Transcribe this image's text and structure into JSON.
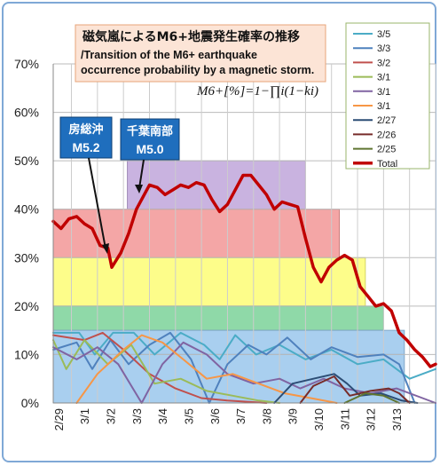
{
  "title_ja": "磁気嵐によるM6+地震発生確率の推移",
  "title_en_line1": "/Transition of the M6+ earthquake",
  "title_en_line2": "occurrence probability by a magnetic storm.",
  "formula": "M6+[%]=1−∏i(1−ki)",
  "callouts": [
    {
      "name": "房総沖",
      "magnitude": "M5.2"
    },
    {
      "name": "千葉南部",
      "magnitude": "M5.0"
    }
  ],
  "colors": {
    "total": "#c00000",
    "band_purple": "#c9b3e0",
    "band_red": "#f4a6a6",
    "band_yellow": "#fdfd8a",
    "band_green": "#8fd9a8",
    "band_blue": "#a9cfef"
  },
  "chart_data": {
    "type": "line",
    "title": "磁気嵐によるM6+地震発生確率の推移",
    "x_tick_labels": [
      "2/29",
      "3/1",
      "3/2",
      "3/3",
      "3/4",
      "3/5",
      "3/6",
      "3/7",
      "3/8",
      "3/9",
      "3/10",
      "3/11",
      "3/12",
      "3/13"
    ],
    "x_range_days": [
      -0.7,
      14.0
    ],
    "y_tick_labels": [
      "0%",
      "10%",
      "20%",
      "30%",
      "40%",
      "50%",
      "60%",
      "70%"
    ],
    "ylim": [
      0,
      70
    ],
    "grid": true,
    "legend_position": "top-right",
    "bands": [
      {
        "x": [
          2.15,
          9.0
        ],
        "y": [
          40,
          50
        ],
        "color": "#c9b3e0"
      },
      {
        "x": [
          -0.7,
          10.3
        ],
        "y": [
          30,
          40
        ],
        "color": "#f4a6a6"
      },
      {
        "x": [
          -0.7,
          11.3
        ],
        "y": [
          20,
          30
        ],
        "color": "#fdfd8a"
      },
      {
        "x": [
          -0.7,
          12.0
        ],
        "y": [
          15,
          20
        ],
        "color": "#8fd9a8"
      },
      {
        "x": [
          -0.7,
          12.8
        ],
        "y": [
          10,
          15
        ],
        "color": "#a9cfef"
      },
      {
        "x": [
          -0.7,
          12.8
        ],
        "y": [
          0,
          10
        ],
        "color": "#a9cfef"
      }
    ],
    "series": [
      {
        "name": "3/5",
        "color": "#4bacc6",
        "points": [
          [
            -0.7,
            14.5
          ],
          [
            0.3,
            14.5
          ],
          [
            0.9,
            10
          ],
          [
            1.6,
            14.5
          ],
          [
            2.4,
            14.5
          ],
          [
            3.2,
            10
          ],
          [
            4.2,
            14.5
          ],
          [
            5.1,
            12
          ],
          [
            5.7,
            9
          ],
          [
            6.3,
            14
          ],
          [
            7.1,
            10
          ],
          [
            8.0,
            12
          ],
          [
            9.0,
            9
          ],
          [
            10.0,
            11
          ],
          [
            11.0,
            8
          ],
          [
            12.0,
            9
          ],
          [
            13.0,
            5
          ],
          [
            14.0,
            7
          ]
        ]
      },
      {
        "name": "3/3",
        "color": "#4f81bd",
        "points": [
          [
            -0.7,
            11
          ],
          [
            0.2,
            12.5
          ],
          [
            0.8,
            7
          ],
          [
            1.5,
            13
          ],
          [
            2.2,
            8
          ],
          [
            3.0,
            12
          ],
          [
            3.8,
            14.5
          ],
          [
            4.6,
            9
          ],
          [
            5.3,
            0
          ],
          [
            6.0,
            8
          ],
          [
            6.8,
            12
          ],
          [
            7.5,
            10
          ],
          [
            8.3,
            13.5
          ],
          [
            9.2,
            9
          ],
          [
            10.0,
            11.5
          ],
          [
            11.0,
            9.5
          ],
          [
            12.0,
            10
          ],
          [
            12.6,
            8
          ],
          [
            13.2,
            0
          ]
        ]
      },
      {
        "name": "3/2",
        "color": "#c0504d",
        "points": [
          [
            -0.7,
            14
          ],
          [
            0.5,
            13
          ],
          [
            1.2,
            14.5
          ],
          [
            2.0,
            11
          ],
          [
            3.0,
            6
          ],
          [
            4.0,
            3
          ],
          [
            5.0,
            1
          ],
          [
            6.0,
            0.5
          ],
          [
            7.5,
            0
          ]
        ]
      },
      {
        "name": "3/1",
        "color": "#9bbb59",
        "points": [
          [
            -0.7,
            13
          ],
          [
            -0.2,
            7
          ],
          [
            0.5,
            13
          ],
          [
            1.4,
            8
          ],
          [
            2.3,
            12
          ],
          [
            3.2,
            4
          ],
          [
            4.2,
            5
          ],
          [
            5.2,
            2.5
          ],
          [
            6.2,
            1.5
          ],
          [
            7.2,
            0.5
          ],
          [
            8.0,
            0
          ]
        ]
      },
      {
        "name": "3/1",
        "color": "#8064a2",
        "points": [
          [
            -0.7,
            11.5
          ],
          [
            0.2,
            9
          ],
          [
            1.0,
            11.5
          ],
          [
            1.8,
            8
          ],
          [
            2.7,
            0
          ],
          [
            3.5,
            8
          ],
          [
            4.3,
            12.5
          ],
          [
            5.2,
            10
          ],
          [
            6.0,
            6
          ],
          [
            7.0,
            4
          ],
          [
            8.0,
            5
          ],
          [
            8.8,
            3
          ],
          [
            9.7,
            5
          ],
          [
            10.5,
            3
          ],
          [
            11.5,
            2
          ],
          [
            12.5,
            3
          ],
          [
            13.5,
            1
          ],
          [
            14.0,
            0
          ]
        ]
      },
      {
        "name": "3/1",
        "color": "#f79646",
        "points": [
          [
            0.2,
            0
          ],
          [
            1.0,
            6
          ],
          [
            2.0,
            11
          ],
          [
            2.7,
            14
          ],
          [
            3.5,
            12.5
          ],
          [
            4.3,
            9
          ],
          [
            5.2,
            5
          ],
          [
            6.2,
            6
          ],
          [
            7.2,
            4
          ],
          [
            8.2,
            2
          ],
          [
            9.2,
            1
          ],
          [
            10.2,
            0
          ]
        ]
      },
      {
        "name": "2/27",
        "color": "#2c4d75",
        "points": [
          [
            7.8,
            0
          ],
          [
            8.5,
            4
          ],
          [
            9.3,
            5
          ],
          [
            10.1,
            6
          ],
          [
            10.6,
            4
          ],
          [
            11.1,
            1.5
          ],
          [
            11.9,
            2
          ],
          [
            12.7,
            0.5
          ],
          [
            13.3,
            0
          ]
        ]
      },
      {
        "name": "2/26",
        "color": "#772c2a",
        "points": [
          [
            8.8,
            0
          ],
          [
            9.3,
            3.5
          ],
          [
            10.1,
            5.5
          ],
          [
            10.7,
            1.5
          ],
          [
            11.5,
            2.5
          ],
          [
            12.2,
            3
          ],
          [
            12.6,
            2
          ],
          [
            13.0,
            0
          ]
        ]
      },
      {
        "name": "2/25",
        "color": "#5f7530",
        "points": [
          [
            10.5,
            0
          ],
          [
            11.3,
            2
          ],
          [
            12.0,
            1.5
          ],
          [
            12.6,
            0
          ]
        ]
      },
      {
        "name": "Total",
        "color": "#c00000",
        "points": [
          [
            -0.7,
            37.5
          ],
          [
            -0.4,
            36
          ],
          [
            -0.1,
            38
          ],
          [
            0.2,
            38.5
          ],
          [
            0.5,
            37
          ],
          [
            0.8,
            36
          ],
          [
            1.1,
            32.5
          ],
          [
            1.4,
            32
          ],
          [
            1.55,
            28
          ],
          [
            1.9,
            31
          ],
          [
            2.2,
            35
          ],
          [
            2.5,
            40
          ],
          [
            2.8,
            43
          ],
          [
            3.0,
            45
          ],
          [
            3.3,
            44.5
          ],
          [
            3.6,
            43
          ],
          [
            3.9,
            44
          ],
          [
            4.2,
            45
          ],
          [
            4.5,
            44.5
          ],
          [
            4.8,
            45.5
          ],
          [
            5.1,
            45
          ],
          [
            5.4,
            42
          ],
          [
            5.7,
            39.5
          ],
          [
            6.0,
            41
          ],
          [
            6.3,
            44
          ],
          [
            6.6,
            47
          ],
          [
            6.9,
            47
          ],
          [
            7.2,
            45
          ],
          [
            7.5,
            43
          ],
          [
            7.8,
            40
          ],
          [
            8.1,
            41.5
          ],
          [
            8.4,
            41
          ],
          [
            8.7,
            40.5
          ],
          [
            9.0,
            34
          ],
          [
            9.3,
            28
          ],
          [
            9.6,
            25
          ],
          [
            9.9,
            28
          ],
          [
            10.2,
            29.5
          ],
          [
            10.5,
            30.5
          ],
          [
            10.8,
            29.5
          ],
          [
            11.1,
            24
          ],
          [
            11.4,
            22
          ],
          [
            11.7,
            20
          ],
          [
            12.0,
            20.5
          ],
          [
            12.3,
            19
          ],
          [
            12.6,
            14.5
          ],
          [
            12.9,
            13
          ],
          [
            13.2,
            11
          ],
          [
            13.5,
            9.5
          ],
          [
            13.8,
            7.5
          ],
          [
            14.0,
            8
          ]
        ]
      }
    ]
  }
}
